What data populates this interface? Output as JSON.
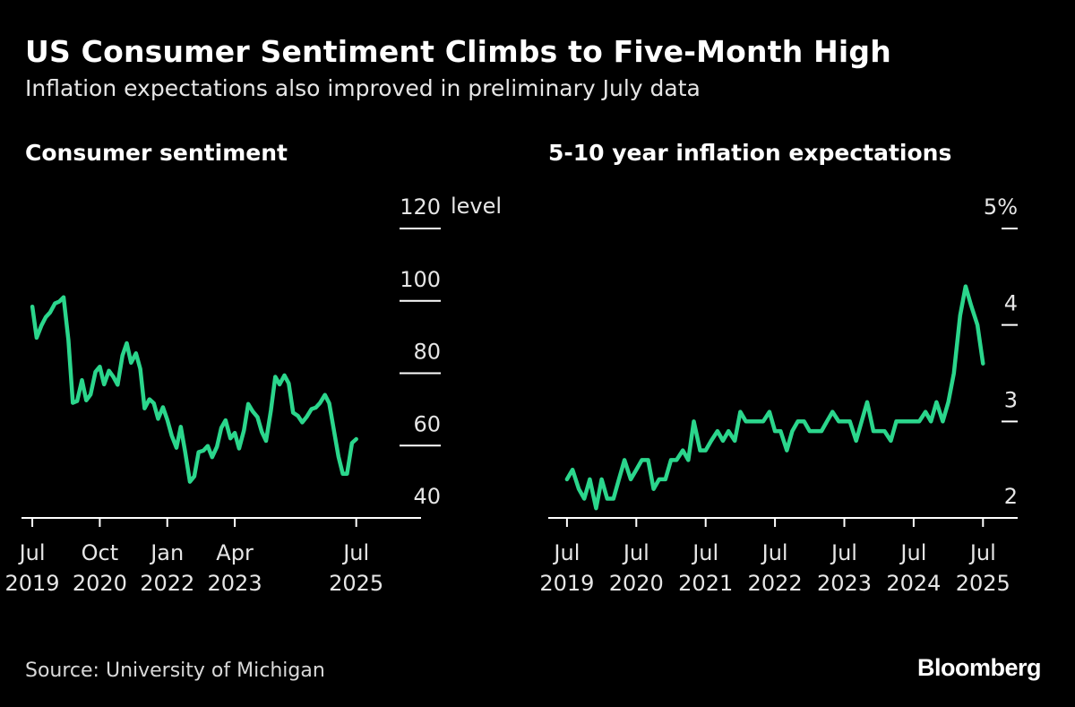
{
  "header": {
    "title": "US Consumer Sentiment Climbs to Five-Month High",
    "subtitle": "Inflation expectations also improved in preliminary July data"
  },
  "colors": {
    "background": "#000000",
    "line": "#2bd68c",
    "axis": "#ffffff",
    "text": "#e6e6e6"
  },
  "chart_data": [
    {
      "type": "line",
      "title": "Consumer sentiment",
      "ylabel": "level",
      "ylim": [
        40,
        120
      ],
      "yticks": [
        {
          "value": 120,
          "label": "120"
        },
        {
          "value": 100,
          "label": "100"
        },
        {
          "value": 80,
          "label": "80"
        },
        {
          "value": 60,
          "label": "60"
        },
        {
          "value": 40,
          "label": "40"
        }
      ],
      "xlim": [
        2019.3,
        2026.7
      ],
      "xticks": [
        {
          "value": 2019.5,
          "label": [
            "Jul",
            "2019"
          ]
        },
        {
          "value": 2020.75,
          "label": [
            "Oct",
            "2020"
          ]
        },
        {
          "value": 2022.0,
          "label": [
            "Jan",
            "2022"
          ]
        },
        {
          "value": 2023.25,
          "label": [
            "Apr",
            "2023"
          ]
        },
        {
          "value": 2025.5,
          "label": [
            "Jul",
            "2025"
          ]
        }
      ],
      "series": [
        {
          "name": "Consumer sentiment",
          "x": [
            2019.5,
            2019.58,
            2019.67,
            2019.75,
            2019.83,
            2019.92,
            2020.0,
            2020.08,
            2020.17,
            2020.25,
            2020.33,
            2020.42,
            2020.5,
            2020.58,
            2020.67,
            2020.75,
            2020.83,
            2020.92,
            2021.0,
            2021.08,
            2021.17,
            2021.25,
            2021.33,
            2021.42,
            2021.5,
            2021.58,
            2021.67,
            2021.75,
            2021.83,
            2021.92,
            2022.0,
            2022.08,
            2022.17,
            2022.25,
            2022.33,
            2022.42,
            2022.5,
            2022.58,
            2022.67,
            2022.75,
            2022.83,
            2022.92,
            2023.0,
            2023.08,
            2023.17,
            2023.25,
            2023.33,
            2023.42,
            2023.5,
            2023.58,
            2023.67,
            2023.75,
            2023.83,
            2023.92,
            2024.0,
            2024.08,
            2024.17,
            2024.25,
            2024.33,
            2024.42,
            2024.5,
            2024.58,
            2024.67,
            2024.75,
            2024.83,
            2024.92,
            2025.0,
            2025.08,
            2025.17,
            2025.25,
            2025.33,
            2025.42,
            2025.5
          ],
          "values": [
            98.4,
            89.8,
            93.2,
            95.5,
            96.8,
            99.3,
            99.8,
            101.0,
            89.1,
            71.8,
            72.3,
            78.1,
            72.5,
            74.1,
            80.4,
            81.8,
            76.9,
            80.7,
            79.0,
            76.8,
            84.9,
            88.3,
            82.9,
            85.5,
            81.2,
            70.3,
            72.8,
            71.7,
            67.4,
            70.6,
            67.2,
            62.8,
            59.4,
            65.2,
            58.4,
            50.0,
            51.5,
            58.2,
            58.6,
            59.9,
            56.8,
            59.7,
            64.9,
            67.0,
            62.0,
            63.5,
            59.2,
            64.2,
            71.5,
            69.5,
            67.9,
            63.8,
            61.3,
            69.7,
            79.0,
            76.9,
            79.4,
            77.2,
            69.1,
            68.2,
            66.4,
            67.9,
            70.1,
            70.5,
            71.8,
            74.0,
            71.7,
            64.7,
            57.0,
            52.2,
            52.2,
            60.7,
            61.8
          ]
        }
      ]
    },
    {
      "type": "line",
      "title": "5-10 year inflation expectations",
      "ylabel": "%",
      "ylim": [
        2,
        5
      ],
      "yticks": [
        {
          "value": 5,
          "label": "5%"
        },
        {
          "value": 4,
          "label": "4"
        },
        {
          "value": 3,
          "label": "3"
        },
        {
          "value": 2,
          "label": "2"
        }
      ],
      "xlim": [
        2019.23,
        2026.0
      ],
      "xticks": [
        {
          "value": 2019.5,
          "label": [
            "Jul",
            "2019"
          ]
        },
        {
          "value": 2020.5,
          "label": [
            "Jul",
            "2020"
          ]
        },
        {
          "value": 2021.5,
          "label": [
            "Jul",
            "2021"
          ]
        },
        {
          "value": 2022.5,
          "label": [
            "Jul",
            "2022"
          ]
        },
        {
          "value": 2023.5,
          "label": [
            "Jul",
            "2023"
          ]
        },
        {
          "value": 2024.5,
          "label": [
            "Jul",
            "2024"
          ]
        },
        {
          "value": 2025.5,
          "label": [
            "Jul",
            "2025"
          ]
        }
      ],
      "series": [
        {
          "name": "5-10 year inflation expectations",
          "x": [
            2019.5,
            2019.58,
            2019.67,
            2019.75,
            2019.83,
            2019.92,
            2020.0,
            2020.08,
            2020.17,
            2020.25,
            2020.33,
            2020.42,
            2020.5,
            2020.58,
            2020.67,
            2020.75,
            2020.83,
            2020.92,
            2021.0,
            2021.08,
            2021.17,
            2021.25,
            2021.33,
            2021.42,
            2021.5,
            2021.58,
            2021.67,
            2021.75,
            2021.83,
            2021.92,
            2022.0,
            2022.08,
            2022.17,
            2022.25,
            2022.33,
            2022.42,
            2022.5,
            2022.58,
            2022.67,
            2022.75,
            2022.83,
            2022.92,
            2023.0,
            2023.08,
            2023.17,
            2023.25,
            2023.33,
            2023.42,
            2023.5,
            2023.58,
            2023.67,
            2023.75,
            2023.83,
            2023.92,
            2024.0,
            2024.08,
            2024.17,
            2024.25,
            2024.33,
            2024.42,
            2024.5,
            2024.58,
            2024.67,
            2024.75,
            2024.83,
            2024.92,
            2025.0,
            2025.08,
            2025.17,
            2025.25,
            2025.33,
            2025.42,
            2025.5
          ],
          "values": [
            2.4,
            2.5,
            2.3,
            2.2,
            2.4,
            2.1,
            2.4,
            2.2,
            2.2,
            2.4,
            2.6,
            2.4,
            2.5,
            2.6,
            2.6,
            2.3,
            2.4,
            2.4,
            2.6,
            2.6,
            2.7,
            2.6,
            3.0,
            2.7,
            2.7,
            2.8,
            2.9,
            2.8,
            2.9,
            2.8,
            3.1,
            3.0,
            3.0,
            3.0,
            3.0,
            3.1,
            2.9,
            2.9,
            2.7,
            2.9,
            3.0,
            3.0,
            2.9,
            2.9,
            2.9,
            3.0,
            3.1,
            3.0,
            3.0,
            3.0,
            2.8,
            3.0,
            3.2,
            2.9,
            2.9,
            2.9,
            2.8,
            3.0,
            3.0,
            3.0,
            3.0,
            3.0,
            3.1,
            3.0,
            3.2,
            3.0,
            3.2,
            3.5,
            4.1,
            4.4,
            4.2,
            4.0,
            3.6
          ]
        }
      ]
    }
  ],
  "footer": {
    "source": "Source: University of Michigan",
    "logo": "Bloomberg"
  }
}
